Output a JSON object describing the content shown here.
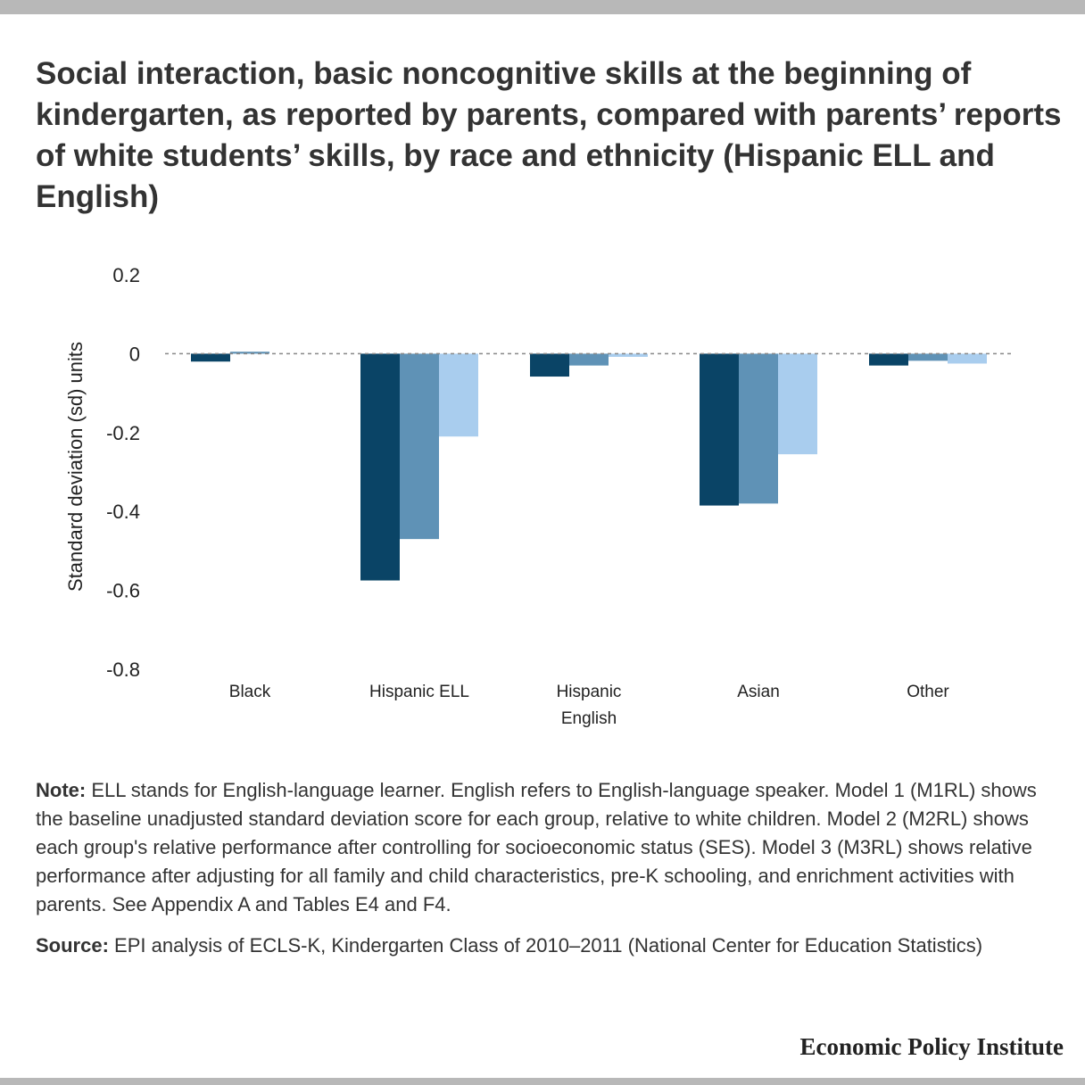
{
  "title": "Social interaction, basic noncognitive skills at the beginning of kindergarten, as reported by parents, compared with parents’ reports of white students’ skills, by race and ethnicity (Hispanic ELL and English)",
  "colors": {
    "m1": "#0a4466",
    "m2": "#5f92b6",
    "m3": "#a9cdee",
    "zero_line": "#888888"
  },
  "chart_data": {
    "type": "bar",
    "title": "",
    "ylabel": "Standard deviation (sd) units",
    "xlabel": "",
    "ylim": [
      -0.8,
      0.2
    ],
    "yticks": [
      "0.2",
      "0",
      "-0.2",
      "-0.4",
      "-0.6",
      "-0.8"
    ],
    "ytick_values": [
      0.2,
      0,
      -0.2,
      -0.4,
      -0.6,
      -0.8
    ],
    "categories": [
      [
        "Black"
      ],
      [
        "Hispanic ELL"
      ],
      [
        "Hispanic",
        "English"
      ],
      [
        "Asian"
      ],
      [
        "Other"
      ]
    ],
    "series": [
      {
        "values": [
          -0.02,
          -0.575,
          -0.058,
          -0.385,
          -0.03
        ]
      },
      {
        "values": [
          0.005,
          -0.47,
          -0.03,
          -0.38,
          -0.018
        ]
      },
      {
        "values": [
          0.0,
          -0.21,
          -0.008,
          -0.255,
          -0.025
        ]
      }
    ],
    "legend": false,
    "grid": false
  },
  "note": {
    "label": "Note:",
    "text": " ELL stands for English-language learner. English refers to English-language speaker. Model 1 (M1RL) shows the baseline unadjusted standard deviation score for each group, relative to white children. Model 2 (M2RL) shows each group's relative performance after controlling for socioeconomic status (SES). Model 3 (M3RL) shows relative performance after adjusting for all family and child characteristics, pre-K schooling, and enrichment activities with parents. See Appendix A and Tables E4 and F4."
  },
  "source": {
    "label": "Source:",
    "text": " EPI analysis of ECLS-K, Kindergarten Class of 2010–2011 (National Center for Education Statistics)"
  },
  "brand": "Economic Policy Institute"
}
